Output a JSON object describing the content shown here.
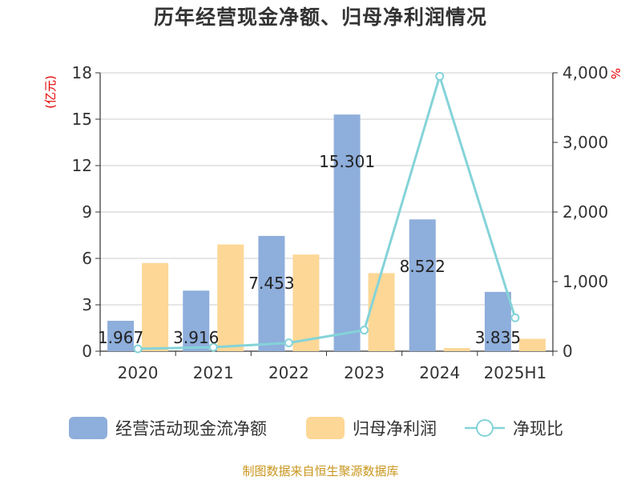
{
  "chart_data": {
    "type": "bar",
    "title": "历年经营现金净额、归母净利润情况",
    "categories": [
      "2020",
      "2021",
      "2022",
      "2023",
      "2024",
      "2025H1"
    ],
    "left_axis": {
      "unit": "(亿元)",
      "ylim": [
        0,
        18
      ],
      "ticks": [
        "0",
        "3",
        "6",
        "9",
        "12",
        "15",
        "18"
      ]
    },
    "right_axis": {
      "unit": "%",
      "ylim": [
        0,
        4000
      ],
      "ticks": [
        "0",
        "1,000",
        "2,000",
        "3,000",
        "4,000"
      ]
    },
    "series": [
      {
        "name": "经营活动现金流净额",
        "type": "bar",
        "axis": "left",
        "color": "#8eaedb",
        "values": [
          1.967,
          3.916,
          7.453,
          15.301,
          8.522,
          3.835
        ],
        "labels": [
          "1.967",
          "3.916",
          "7.453",
          "15.301",
          "8.522",
          "3.835"
        ]
      },
      {
        "name": "归母净利润",
        "type": "bar",
        "axis": "left",
        "color": "#fdd796",
        "values": [
          5.7,
          6.9,
          6.25,
          5.05,
          0.2,
          0.8
        ]
      },
      {
        "name": "净现比",
        "type": "line",
        "axis": "right",
        "color": "#84d3d8",
        "values": [
          34,
          57,
          119,
          303,
          3950,
          480
        ]
      }
    ],
    "grid": true,
    "legend_position": "bottom",
    "source": "制图数据来自恒生聚源数据库"
  }
}
